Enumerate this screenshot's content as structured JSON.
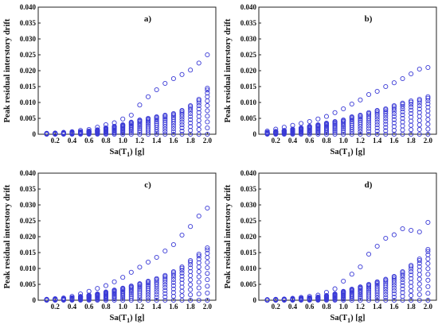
{
  "chart_data": {
    "type": "scatter",
    "layout": "2x2",
    "marker": "open-circle",
    "marker_color": "#3a3ad6",
    "xlim": [
      0.0,
      2.1
    ],
    "ylim": [
      0.0,
      0.04
    ],
    "x_ticks": [
      "0.2",
      "0.4",
      "0.6",
      "0.8",
      "1.0",
      "1.2",
      "1.4",
      "1.6",
      "1.8",
      "2.0"
    ],
    "y_ticks": [
      "0",
      "0.005",
      "0.010",
      "0.015",
      "0.020",
      "0.025",
      "0.030",
      "0.035",
      "0.040"
    ],
    "xlabel": "Sa(T1) [g]",
    "ylabel": "Peak residual interstory drift",
    "x_positions": [
      0.1,
      0.2,
      0.3,
      0.4,
      0.5,
      0.6,
      0.7,
      0.8,
      0.9,
      1.0,
      1.1,
      1.2,
      1.3,
      1.4,
      1.5,
      1.6,
      1.7,
      1.8,
      1.9,
      2.0
    ],
    "panels": [
      {
        "label": "a)",
        "y_max": [
          0.0003,
          0.0004,
          0.0006,
          0.0008,
          0.0012,
          0.0015,
          0.0022,
          0.003,
          0.0036,
          0.0048,
          0.006,
          0.0092,
          0.0118,
          0.014,
          0.016,
          0.0175,
          0.0188,
          0.0202,
          0.0224,
          0.025
        ],
        "y_spread": [
          0.0002,
          0.0003,
          0.0004,
          0.0006,
          0.0008,
          0.001,
          0.0014,
          0.002,
          0.0025,
          0.003,
          0.0038,
          0.0045,
          0.005,
          0.0055,
          0.006,
          0.0065,
          0.0075,
          0.009,
          0.011,
          0.0145
        ]
      },
      {
        "label": "b)",
        "y_max": [
          0.001,
          0.0016,
          0.0022,
          0.0028,
          0.0034,
          0.004,
          0.0048,
          0.0056,
          0.0068,
          0.008,
          0.0095,
          0.0108,
          0.0125,
          0.0135,
          0.015,
          0.0162,
          0.0175,
          0.019,
          0.0205,
          0.021
        ],
        "y_spread": [
          0.0006,
          0.0009,
          0.0012,
          0.0016,
          0.002,
          0.0025,
          0.003,
          0.0035,
          0.004,
          0.0045,
          0.0055,
          0.006,
          0.0068,
          0.0075,
          0.008,
          0.009,
          0.0098,
          0.0105,
          0.011,
          0.0118
        ]
      },
      {
        "label": "c)",
        "y_max": [
          0.0003,
          0.0005,
          0.0007,
          0.0012,
          0.002,
          0.0028,
          0.0037,
          0.0046,
          0.0058,
          0.0072,
          0.0088,
          0.0104,
          0.012,
          0.0135,
          0.0155,
          0.0175,
          0.0205,
          0.0232,
          0.0265,
          0.029
        ],
        "y_spread": [
          0.0002,
          0.0003,
          0.0005,
          0.0008,
          0.0012,
          0.0016,
          0.002,
          0.0026,
          0.0032,
          0.0038,
          0.0045,
          0.0052,
          0.006,
          0.0068,
          0.0078,
          0.009,
          0.0105,
          0.0125,
          0.0145,
          0.0165
        ]
      },
      {
        "label": "d)",
        "y_max": [
          0.0002,
          0.0003,
          0.0004,
          0.0006,
          0.0009,
          0.0012,
          0.0016,
          0.0025,
          0.0036,
          0.006,
          0.0082,
          0.0105,
          0.0145,
          0.017,
          0.0195,
          0.0206,
          0.0225,
          0.022,
          0.0215,
          0.0245
        ],
        "y_spread": [
          0.0001,
          0.0002,
          0.0003,
          0.0004,
          0.0006,
          0.0008,
          0.001,
          0.0015,
          0.002,
          0.0028,
          0.0035,
          0.0042,
          0.005,
          0.0058,
          0.0066,
          0.0075,
          0.009,
          0.011,
          0.013,
          0.016
        ]
      }
    ]
  }
}
